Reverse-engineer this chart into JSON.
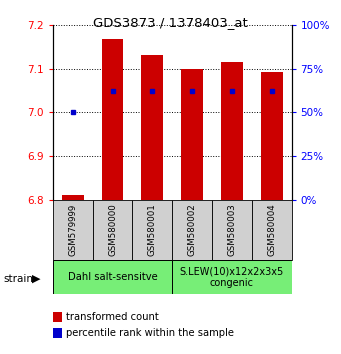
{
  "title": "GDS3873 / 1378403_at",
  "samples": [
    "GSM579999",
    "GSM580000",
    "GSM580001",
    "GSM580002",
    "GSM580003",
    "GSM580004"
  ],
  "transformed_counts": [
    6.812,
    7.168,
    7.13,
    7.1,
    7.115,
    7.092
  ],
  "percentile_ranks": [
    50,
    62,
    62,
    62,
    62,
    62
  ],
  "bar_bottom": 6.8,
  "ylim_left": [
    6.8,
    7.2
  ],
  "ylim_right": [
    0,
    100
  ],
  "yticks_left": [
    6.8,
    6.9,
    7.0,
    7.1,
    7.2
  ],
  "yticks_right": [
    0,
    25,
    50,
    75,
    100
  ],
  "bar_color": "#cc0000",
  "dot_color": "#0000cc",
  "sample_bg_color": "#d0d0d0",
  "group_bg_color": "#77ee77",
  "group1_label": "Dahl salt-sensitve",
  "group2_label": "S.LEW(10)x12x2x3x5\ncongenic",
  "group1_indices": [
    0,
    1,
    2
  ],
  "group2_indices": [
    3,
    4,
    5
  ],
  "legend_bar_label": "transformed count",
  "legend_dot_label": "percentile rank within the sample",
  "strain_label": "strain"
}
